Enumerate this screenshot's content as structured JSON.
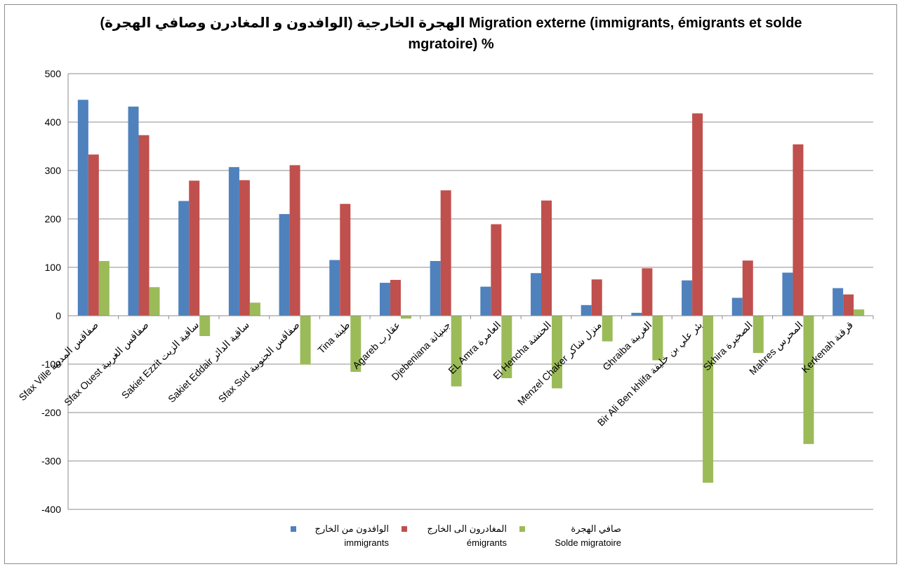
{
  "chart_data": {
    "type": "bar",
    "title_line1": "الهجرة الخارجية (الوافدون و المغادرن وصافي الهجرة)  Migration externe (immigrants, émigrants et solde",
    "title_line2": "mgratoire) %",
    "categories": [
      "Sfax Ville  صفاقس المدينة",
      "Sfax Ouest  صفاقس الغربية",
      "Sakiet Ezzit  ساقية الزيت",
      "Sakiet Eddair  ساقية الدائر",
      "Sfax Sud  صفاقس الجنوبية",
      "Tina  طينة",
      "Agareb  عقارب",
      "Djebeniana  جبنيانة",
      "EL Amra  العامرة",
      "El Hencha  الحنشة",
      "Menzel Chaker  منزل شاكر",
      "Ghraiba  الغريبة",
      "Bir Ali Ben khlifa  بئر علي بن خليفة",
      "Skhira  الصخيرة",
      "Mahres  المحرس",
      "Kerkenah  قرقنة"
    ],
    "series": [
      {
        "name": "الوافدون من الخارج",
        "name2": "immigrants",
        "color": "#4f81bd",
        "values": [
          446,
          432,
          237,
          307,
          210,
          115,
          68,
          113,
          60,
          88,
          22,
          6,
          73,
          37,
          89,
          57
        ]
      },
      {
        "name": "المغادرون الى الخارج",
        "name2": "émigrants",
        "color": "#c0504d",
        "values": [
          333,
          373,
          279,
          280,
          311,
          231,
          74,
          259,
          189,
          238,
          75,
          98,
          418,
          114,
          354,
          44
        ]
      },
      {
        "name": "صافي الهجرة",
        "name2": "Solde migratoire",
        "color": "#9bbb59",
        "values": [
          113,
          59,
          -42,
          27,
          -101,
          -116,
          -6,
          -146,
          -129,
          -150,
          -53,
          -92,
          -345,
          -77,
          -265,
          13
        ]
      }
    ],
    "ylim": [
      -400,
      500
    ],
    "yticks": [
      500,
      400,
      300,
      200,
      100,
      0,
      -100,
      -200,
      -300,
      -400
    ],
    "grid": true,
    "legend_position": "bottom"
  }
}
